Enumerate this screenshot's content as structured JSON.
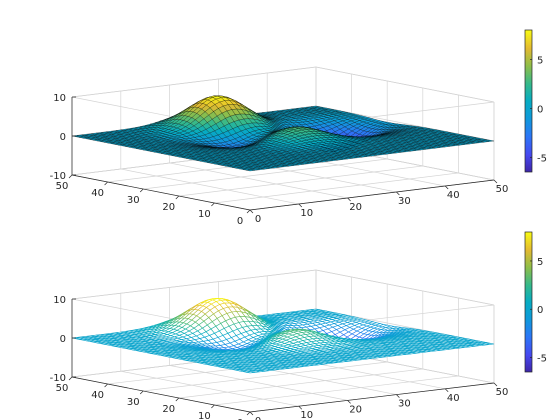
{
  "chart_data": [
    {
      "type": "surface",
      "style": "shaded surface with black mesh edges (surf)",
      "x": [
        0,
        50
      ],
      "y": [
        0,
        50
      ],
      "grid_size": 50,
      "xticks": [
        0,
        10,
        20,
        30,
        40,
        50
      ],
      "yticks": [
        0,
        10,
        20,
        30,
        40,
        50
      ],
      "zticks": [
        -10,
        0,
        10
      ],
      "zlim": [
        -10,
        10
      ],
      "colormap": "parula",
      "colorbar_ticks": [
        -5,
        0,
        5
      ],
      "clim": [
        -6.5,
        8
      ],
      "peaks": [
        {
          "x": 24,
          "y": 42,
          "height": 8.1
        },
        {
          "x": 26,
          "y": 24,
          "height": 3.7
        },
        {
          "x": 39,
          "y": 30,
          "height": -6.5
        },
        {
          "x": 20,
          "y": 30,
          "height": -3.2
        }
      ]
    },
    {
      "type": "surface",
      "style": "wireframe mesh (mesh)",
      "x": [
        0,
        50
      ],
      "y": [
        0,
        50
      ],
      "grid_size": 50,
      "xticks": [
        0,
        10,
        20,
        30,
        40,
        50
      ],
      "yticks": [
        0,
        10,
        20,
        30,
        40,
        50
      ],
      "zticks": [
        -10,
        0,
        10
      ],
      "zlim": [
        -10,
        10
      ],
      "colormap": "parula",
      "colorbar_ticks": [
        -5,
        0,
        5
      ],
      "clim": [
        -6.5,
        8
      ],
      "peaks": [
        {
          "x": 24,
          "y": 42,
          "height": 8.1
        },
        {
          "x": 26,
          "y": 24,
          "height": 3.7
        },
        {
          "x": 39,
          "y": 30,
          "height": -6.5
        },
        {
          "x": 20,
          "y": 30,
          "height": -3.2
        }
      ]
    }
  ]
}
